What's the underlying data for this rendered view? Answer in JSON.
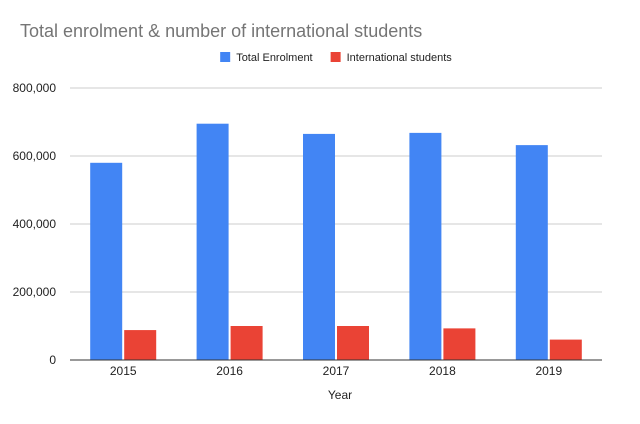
{
  "chart_data": {
    "type": "bar",
    "title": "Total enrolment & number of international students",
    "xlabel": "Year",
    "ylabel": "",
    "categories": [
      "2015",
      "2016",
      "2017",
      "2018",
      "2019"
    ],
    "series": [
      {
        "name": "Total Enrolment",
        "color": "#4285f4",
        "values": [
          580000,
          695000,
          665000,
          668000,
          632000
        ]
      },
      {
        "name": "International students",
        "color": "#ea4335",
        "values": [
          88000,
          100000,
          100000,
          93000,
          60000
        ]
      }
    ],
    "ylim": [
      0,
      800000
    ],
    "yticks": [
      0,
      200000,
      400000,
      600000,
      800000
    ],
    "ytick_labels": [
      "0",
      "200,000",
      "400,000",
      "600,000",
      "800,000"
    ],
    "grid": true,
    "legend_position": "top-center"
  }
}
